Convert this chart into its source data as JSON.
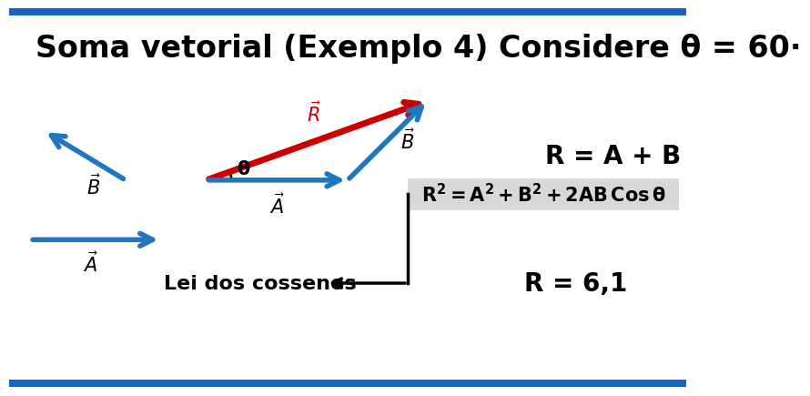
{
  "title": "Soma vetorial (Exemplo 4) Considere θ = 60·",
  "title_fontsize": 24,
  "background_color": "#ffffff",
  "bar_color": "#1565C0",
  "arrow_blue": "#2176C0",
  "arrow_red": "#cc0000",
  "formula_bg": "#d8d8d8",
  "text_color": "#000000",
  "r_eq_ab": "R = A + B",
  "r_result": "R = 6,1",
  "lei_label": "Lei dos cossenos",
  "theta_label": "θ",
  "bar_thickness": 10
}
